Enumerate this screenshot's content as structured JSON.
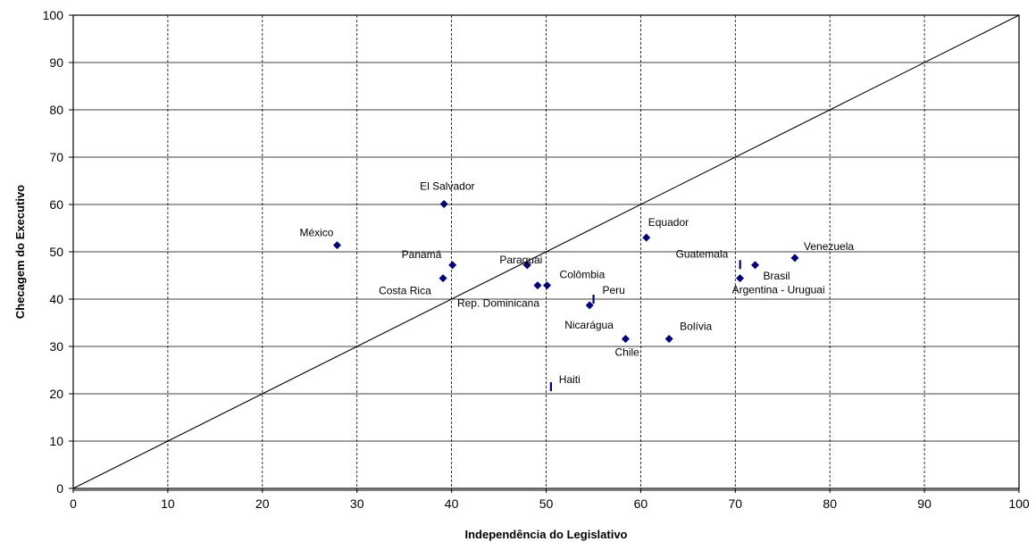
{
  "chart_data": {
    "type": "scatter",
    "title": "",
    "xlabel": "Independência do Legislativo",
    "ylabel": "Checagem do Executivo",
    "xlim": [
      0,
      100
    ],
    "ylim": [
      0,
      100
    ],
    "xticks": [
      0,
      10,
      20,
      30,
      40,
      50,
      60,
      70,
      80,
      90,
      100
    ],
    "yticks": [
      0,
      10,
      20,
      30,
      40,
      50,
      60,
      70,
      80,
      90,
      100
    ],
    "grid": {
      "x": "dashed",
      "y": "solid"
    },
    "reference_line": {
      "from": [
        0,
        0
      ],
      "to": [
        100,
        100
      ]
    },
    "marker_color": "#000080",
    "points": [
      {
        "label": "México",
        "x": 27.9,
        "y": 51.4,
        "marker": "diamond"
      },
      {
        "label": "El Salvador",
        "x": 39.2,
        "y": 60.1,
        "marker": "diamond"
      },
      {
        "label": "Costa Rica",
        "x": 39.1,
        "y": 44.4,
        "marker": "diamond"
      },
      {
        "label": "Panamá",
        "x": 40.1,
        "y": 47.2,
        "marker": "diamond"
      },
      {
        "label": "Paraguai",
        "x": 48.0,
        "y": 47.2,
        "marker": "diamond"
      },
      {
        "label": "Rep. Dominicana",
        "x": 49.1,
        "y": 42.9,
        "marker": "diamond"
      },
      {
        "label": "Colômbia",
        "x": 50.1,
        "y": 42.9,
        "marker": "diamond"
      },
      {
        "label": "Peru",
        "x": 55.0,
        "y": 40.0,
        "marker": "dash"
      },
      {
        "label": "Nicarágua",
        "x": 54.6,
        "y": 38.7,
        "marker": "diamond"
      },
      {
        "label": "Haiti",
        "x": 50.5,
        "y": 21.5,
        "marker": "dash"
      },
      {
        "label": "Chile",
        "x": 58.4,
        "y": 31.6,
        "marker": "diamond"
      },
      {
        "label": "Equador",
        "x": 60.6,
        "y": 53.0,
        "marker": "diamond"
      },
      {
        "label": "Bolívia",
        "x": 63.0,
        "y": 31.6,
        "marker": "diamond"
      },
      {
        "label": "Guatemala",
        "x": 70.5,
        "y": 47.3,
        "marker": "dash"
      },
      {
        "label": "Argentina - Uruguai",
        "x": 70.5,
        "y": 44.4,
        "marker": "diamond"
      },
      {
        "label": "Brasil",
        "x": 72.1,
        "y": 47.2,
        "marker": "diamond"
      },
      {
        "label": "Venezuela",
        "x": 76.3,
        "y": 48.7,
        "marker": "diamond"
      }
    ]
  }
}
